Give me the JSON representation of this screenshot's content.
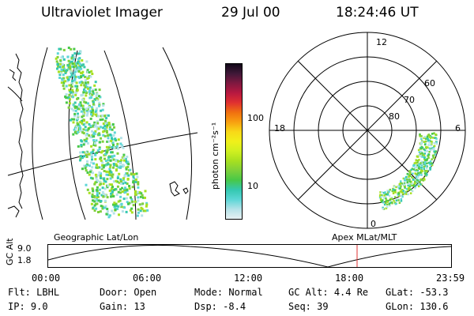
{
  "header": {
    "instrument": "Ultraviolet Imager",
    "date": "29 Jul 00",
    "time": "18:24:46 UT"
  },
  "geo_panel": {
    "label": "Geographic Lat/Lon"
  },
  "polar_panel": {
    "label": "Apex MLat/MLT",
    "mlt_labels": [
      "12",
      "18",
      "6",
      "0"
    ],
    "lat_labels": [
      "60",
      "70",
      "80"
    ]
  },
  "colorbar": {
    "unit_label": "photon cm⁻²s⁻¹",
    "ticks": [
      "100",
      "10"
    ],
    "colors": [
      "#e6f0f2",
      "#b4e2e8",
      "#5cd6d6",
      "#34c8b0",
      "#48c848",
      "#7ed03a",
      "#a8e020",
      "#d0f020",
      "#f0f01a",
      "#f8d818",
      "#f8a010",
      "#f07010",
      "#e03030",
      "#b81840",
      "#801840",
      "#401838",
      "#100818"
    ]
  },
  "timeline": {
    "axis_label": "GC Alt",
    "y_ticks": [
      "9.0",
      "1.8"
    ],
    "x_ticks": [
      "00:00",
      "06:00",
      "12:00",
      "18:00",
      "23:59"
    ],
    "marker_time": "18:24",
    "marker_color": "#e03030"
  },
  "info": {
    "row1": [
      {
        "key": "Flt:",
        "value": "LBHL"
      },
      {
        "key": "Door:",
        "value": "Open"
      },
      {
        "key": "Mode:",
        "value": "Normal"
      },
      {
        "key": "GC Alt:",
        "value": "4.4 Re"
      },
      {
        "key": "GLat:",
        "value": "-53.3"
      }
    ],
    "row2": [
      {
        "key": "IP:",
        "value": "9.0"
      },
      {
        "key": "Gain:",
        "value": "13"
      },
      {
        "key": "Dsp:",
        "value": "-8.4"
      },
      {
        "key": "Seq:",
        "value": "39"
      },
      {
        "key": "GLon:",
        "value": "130.6"
      }
    ]
  }
}
